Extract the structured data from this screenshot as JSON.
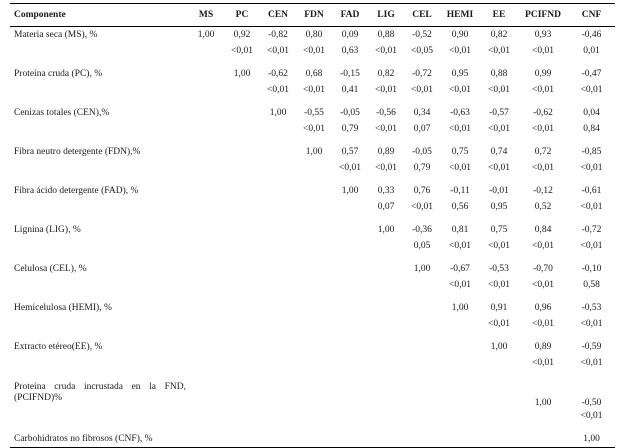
{
  "table": {
    "headers": [
      "Componente",
      "MS",
      "PC",
      "CEN",
      "FDN",
      "FAD",
      "LIG",
      "CEL",
      "HEMI",
      "EE",
      "PCIFND",
      "CNF"
    ],
    "rows": [
      {
        "label": "Materia seca (MS), %",
        "r": [
          "1,00",
          "0,92",
          "-0,82",
          "0,80",
          "0,09",
          "0,88",
          "-0,52",
          "0,90",
          "0,82",
          "0,93",
          "-0,46"
        ],
        "p": [
          "",
          "<0,01",
          "<0,01",
          "<0,01",
          "0,63",
          "<0,01",
          "<0,05",
          "<0,01",
          "<0,01",
          "<0,01",
          "0,01"
        ]
      },
      {
        "label": "Proteína cruda (PC), %",
        "r": [
          "",
          "1,00",
          "-0,62",
          "0,68",
          "-0,15",
          "0,82",
          "-0,72",
          "0,95",
          "0,88",
          "0,99",
          "-0,47"
        ],
        "p": [
          "",
          "",
          "<0,01",
          "<0,01",
          "0,41",
          "<0,01",
          "<0,01",
          "<0,01",
          "<0,01",
          "<0,01",
          "<0,01"
        ]
      },
      {
        "label": "Cenizas totales (CEN),%",
        "r": [
          "",
          "",
          "1,00",
          "-0,55",
          "-0,05",
          "-0,56",
          "0,34",
          "-0,63",
          "-0,57",
          "-0,62",
          "0,04"
        ],
        "p": [
          "",
          "",
          "",
          "<0,01",
          "0,79",
          "<0,01",
          "0,07",
          "<0,01",
          "<0,01",
          "<0,01",
          "0,84"
        ]
      },
      {
        "label": "Fibra neutro detergente (FDN),%",
        "r": [
          "",
          "",
          "",
          "1,00",
          "0,57",
          "0,89",
          "-0,05",
          "0,75",
          "0,74",
          "0,72",
          "-0,85"
        ],
        "p": [
          "",
          "",
          "",
          "",
          "<0,01",
          "<0,01",
          "0,79",
          "<0,01",
          "<0,01",
          "<0,01",
          "<0,01"
        ]
      },
      {
        "label": "Fibra ácido detergente (FAD), %",
        "r": [
          "",
          "",
          "",
          "",
          "1,00",
          "0,33",
          "0,76",
          "-0,11",
          "-0,01",
          "-0,12",
          "-0,61"
        ],
        "p": [
          "",
          "",
          "",
          "",
          "",
          "0,07",
          "<0,01",
          "0,56",
          "0,95",
          "0,52",
          "<0,01"
        ]
      },
      {
        "label": "Lignina (LIG), %",
        "r": [
          "",
          "",
          "",
          "",
          "",
          "1,00",
          "-0,36",
          "0,81",
          "0,75",
          "0,84",
          "-0,72"
        ],
        "p": [
          "",
          "",
          "",
          "",
          "",
          "",
          "0,05",
          "<0,01",
          "<0,01",
          "<0,01",
          "<0,01"
        ]
      },
      {
        "label": "Celulosa (CEL), %",
        "r": [
          "",
          "",
          "",
          "",
          "",
          "",
          "1,00",
          "-0,67",
          "-0,53",
          "-0,70",
          "-0,10"
        ],
        "p": [
          "",
          "",
          "",
          "",
          "",
          "",
          "",
          "<0,01",
          "<0,01",
          "<0,01",
          "0,58"
        ]
      },
      {
        "label": "Hemicelulosa (HEMI), %",
        "r": [
          "",
          "",
          "",
          "",
          "",
          "",
          "",
          "1,00",
          "0,91",
          "0,96",
          "-0,53"
        ],
        "p": [
          "",
          "",
          "",
          "",
          "",
          "",
          "",
          "",
          "<0,01",
          "<0,01",
          "<0,01"
        ]
      },
      {
        "label": "Extracto etéreo(EE), %",
        "r": [
          "",
          "",
          "",
          "",
          "",
          "",
          "",
          "",
          "1,00",
          "0,89",
          "-0,59"
        ],
        "p": [
          "",
          "",
          "",
          "",
          "",
          "",
          "",
          "",
          "",
          "<0,01",
          "<0,01"
        ]
      },
      {
        "label": "Proteína cruda incrustada en la FND, (PCIFND)%",
        "r": [
          "",
          "",
          "",
          "",
          "",
          "",
          "",
          "",
          "",
          "1,00",
          "-0,50"
        ],
        "p": [
          "",
          "",
          "",
          "",
          "",
          "",
          "",
          "",
          "",
          "",
          "<0,01"
        ]
      },
      {
        "label": "Carbohidratos no fibrosos (CNF), %",
        "r": [
          "",
          "",
          "",
          "",
          "",
          "",
          "",
          "",
          "",
          "",
          "1,00"
        ],
        "p": null
      }
    ]
  }
}
